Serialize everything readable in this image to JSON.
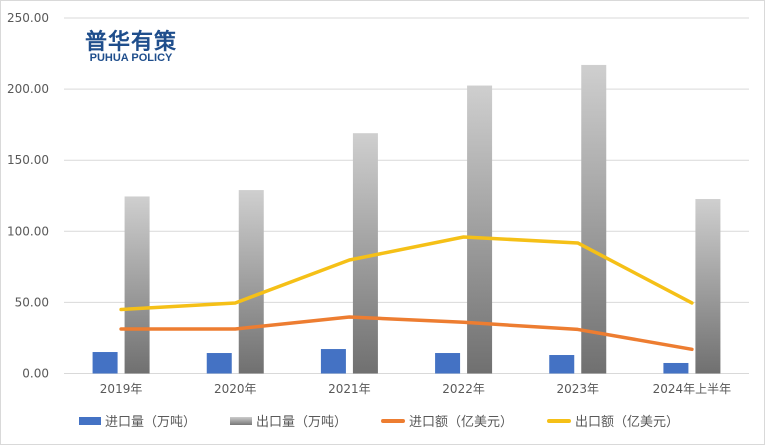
{
  "chart_data": {
    "type": "bar",
    "title": "",
    "xlabel": "",
    "ylabel": "",
    "ylim": [
      0,
      250
    ],
    "yticks": [
      "0.00",
      "50.00",
      "100.00",
      "150.00",
      "200.00",
      "250.00"
    ],
    "grid": true,
    "legend_position": "bottom",
    "categories": [
      "2019年",
      "2020年",
      "2021年",
      "2022年",
      "2023年",
      "2024年上半年"
    ],
    "series": [
      {
        "name": "进口量（万吨）",
        "kind": "bar",
        "color": "#4472c4",
        "values": [
          15.1,
          14.4,
          17.2,
          14.4,
          13.0,
          7.4
        ]
      },
      {
        "name": "出口量（万吨）",
        "kind": "bar",
        "color": "#999999",
        "values": [
          124.5,
          129.0,
          169.0,
          202.5,
          217.0,
          122.7
        ]
      },
      {
        "name": "进口额（亿美元）",
        "kind": "line",
        "color": "#ed7d31",
        "values": [
          31.3,
          31.3,
          39.7,
          36.0,
          31.0,
          17.0
        ]
      },
      {
        "name": "出口额（亿美元）",
        "kind": "line",
        "color": "#f5c017",
        "values": [
          45.0,
          49.6,
          79.8,
          96.0,
          91.8,
          49.6
        ]
      }
    ]
  },
  "watermark": {
    "cn": "普华有策",
    "en": "PUHUA POLICY"
  }
}
